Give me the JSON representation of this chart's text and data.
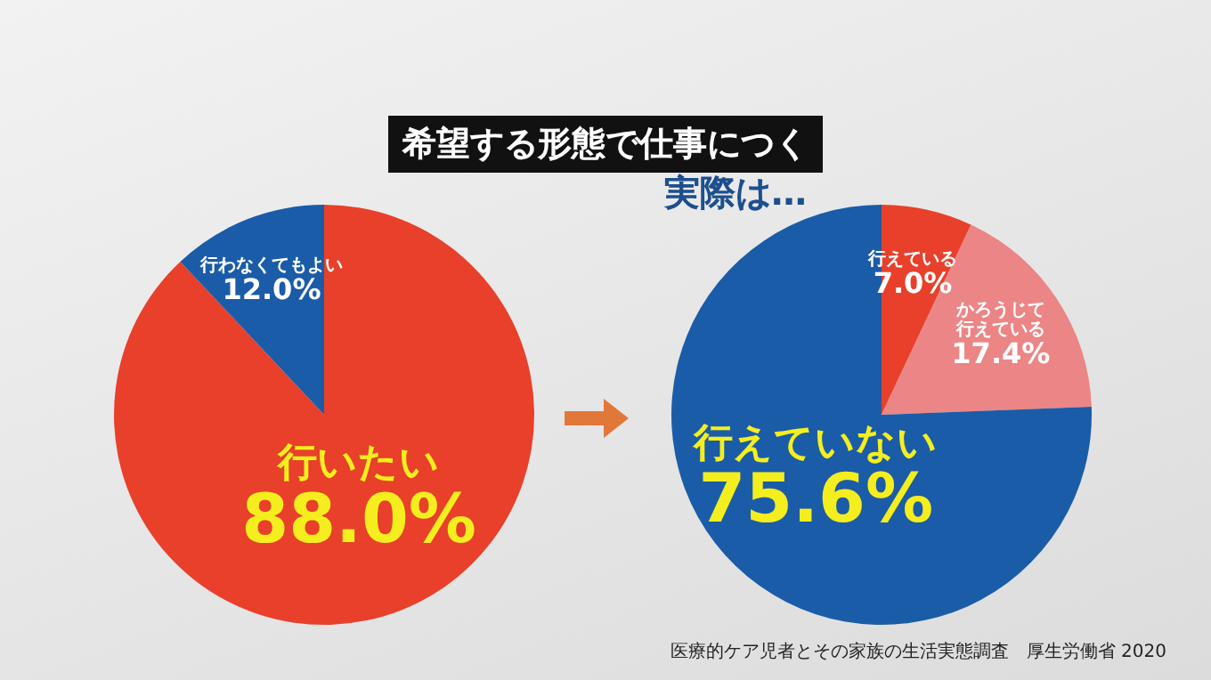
{
  "chart_data": [
    {
      "type": "pie",
      "title": "希望する形態で仕事につく",
      "categories": [
        "行いたい",
        "行わなくてもよい"
      ],
      "values": [
        88.0,
        12.0
      ],
      "colors": [
        "#e8402a",
        "#1a5ca8"
      ],
      "value_labels": [
        "88.0%",
        "12.0%"
      ]
    },
    {
      "type": "pie",
      "title": "実際は…",
      "categories": [
        "行えている",
        "かろうじて行えている",
        "行えていない"
      ],
      "values": [
        7.0,
        17.4,
        75.6
      ],
      "colors": [
        "#e8402a",
        "#ec8585",
        "#1a5ca8"
      ],
      "value_labels": [
        "7.0%",
        "17.4%",
        "75.6%"
      ],
      "annotations": [
        "医療的ケア児者とその家族の生活実態調査　厚生労働省 2020"
      ]
    }
  ]
}
